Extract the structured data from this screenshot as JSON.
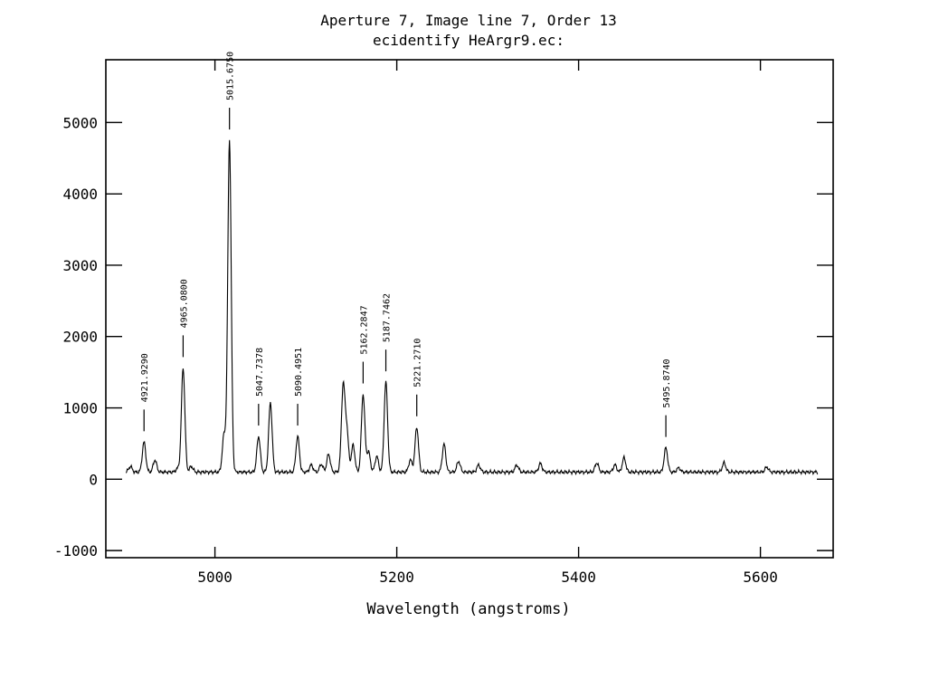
{
  "chart_data": {
    "type": "line",
    "title": "Aperture 7, Image line 7, Order 13",
    "subtitle": "ecidentify HeArgr9.ec:",
    "xlabel": "Wavelength (angstroms)",
    "ylabel": "",
    "xlim": [
      4880,
      5680
    ],
    "ylim": [
      -1100,
      5880
    ],
    "x_ticks": [
      "5000",
      "5200",
      "5400",
      "5600"
    ],
    "x_tick_values": [
      5000,
      5200,
      5400,
      5600
    ],
    "y_ticks": [
      "-1000",
      "0",
      "1000",
      "2000",
      "3000",
      "4000",
      "5000"
    ],
    "y_tick_values": [
      -1000,
      0,
      1000,
      2000,
      3000,
      4000,
      5000
    ],
    "grid": false,
    "baseline": 100,
    "x_start": 4902,
    "x_end": 5663,
    "peaks": [
      {
        "x": 4907,
        "y": 180
      },
      {
        "x": 4922,
        "y": 520
      },
      {
        "x": 4934,
        "y": 270
      },
      {
        "x": 4959,
        "y": 150
      },
      {
        "x": 4965,
        "y": 1560
      },
      {
        "x": 4974,
        "y": 180
      },
      {
        "x": 5010,
        "y": 620
      },
      {
        "x": 5016,
        "y": 4750
      },
      {
        "x": 5048,
        "y": 600
      },
      {
        "x": 5061,
        "y": 1070
      },
      {
        "x": 5091,
        "y": 600
      },
      {
        "x": 5106,
        "y": 200
      },
      {
        "x": 5117,
        "y": 210
      },
      {
        "x": 5125,
        "y": 350
      },
      {
        "x": 5141,
        "y": 1290
      },
      {
        "x": 5145,
        "y": 680
      },
      {
        "x": 5152,
        "y": 480
      },
      {
        "x": 5163,
        "y": 1190
      },
      {
        "x": 5169,
        "y": 380
      },
      {
        "x": 5178,
        "y": 320
      },
      {
        "x": 5188,
        "y": 1360
      },
      {
        "x": 5215,
        "y": 270
      },
      {
        "x": 5222,
        "y": 730
      },
      {
        "x": 5252,
        "y": 490
      },
      {
        "x": 5268,
        "y": 250
      },
      {
        "x": 5290,
        "y": 200
      },
      {
        "x": 5332,
        "y": 200
      },
      {
        "x": 5358,
        "y": 220
      },
      {
        "x": 5420,
        "y": 230
      },
      {
        "x": 5440,
        "y": 200
      },
      {
        "x": 5450,
        "y": 300
      },
      {
        "x": 5496,
        "y": 440
      },
      {
        "x": 5510,
        "y": 160
      },
      {
        "x": 5560,
        "y": 230
      },
      {
        "x": 5607,
        "y": 170
      }
    ],
    "identified_lines": [
      {
        "label": "4921.9290",
        "x": 4922,
        "y": 520
      },
      {
        "label": "4965.0800",
        "x": 4965,
        "y": 1560
      },
      {
        "label": "5015.6750",
        "x": 5016,
        "y": 4750
      },
      {
        "label": "5047.7378",
        "x": 5048,
        "y": 600
      },
      {
        "label": "5090.4951",
        "x": 5091,
        "y": 600
      },
      {
        "label": "5162.2847",
        "x": 5163,
        "y": 1190
      },
      {
        "label": "5187.7462",
        "x": 5188,
        "y": 1360
      },
      {
        "label": "5221.2710",
        "x": 5222,
        "y": 730
      },
      {
        "label": "5495.8740",
        "x": 5496,
        "y": 440
      }
    ]
  }
}
